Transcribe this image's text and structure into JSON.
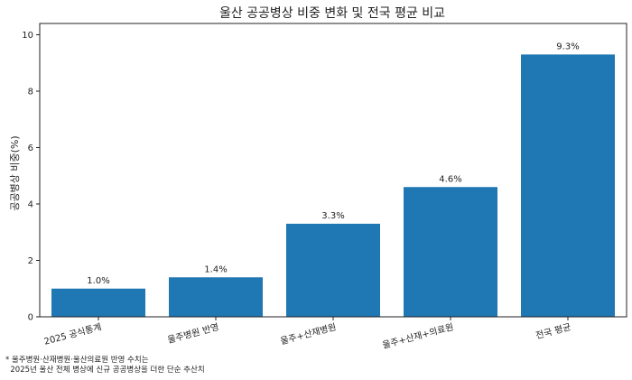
{
  "chart_data": {
    "type": "bar",
    "title": "울산 공공병상 비중 변화 및 전국 평균 비교",
    "xlabel": "",
    "ylabel": "공공병상 비중(%)",
    "categories": [
      "2025 공식통계",
      "울주병원 반영",
      "울주+산재병원",
      "울주+산재+의료원",
      "전국 평균"
    ],
    "values": [
      1.0,
      1.4,
      3.3,
      4.6,
      9.3
    ],
    "value_labels": [
      "1.0%",
      "1.4%",
      "3.3%",
      "4.6%",
      "9.3%"
    ],
    "ylim": [
      0,
      10.4
    ],
    "yticks": [
      0,
      2,
      4,
      6,
      8,
      10
    ],
    "grid": false,
    "bar_color": "#1f77b4"
  },
  "footnote": {
    "line1": "* 울주병원·산재병원·울산의료원 반영 수치는",
    "line2": "  2025년 울산 전체 병상에 신규 공공병상을 더한 단순 추산치"
  }
}
